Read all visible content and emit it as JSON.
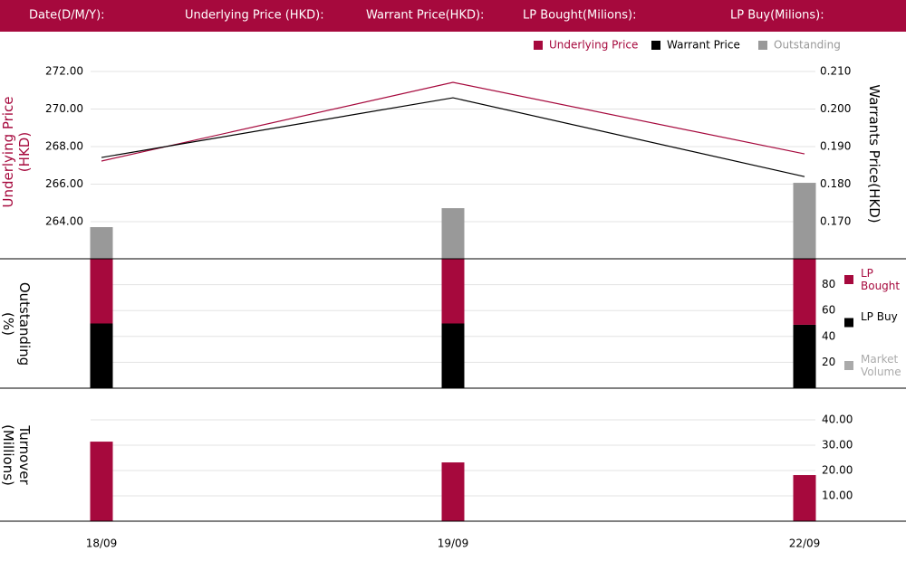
{
  "header": {
    "labels": [
      "Date(D/M/Y):",
      "Underlying Price (HKD):",
      "Warrant  Price(HKD):",
      "LP Bought(Milions):",
      "LP Buy(Milions):"
    ]
  },
  "chart_data": [
    {
      "type": "line",
      "ylabel": "Underlying Price (HKD)",
      "y2label": "Warrants  Price(HKD)",
      "ylim": [
        262,
        273
      ],
      "yticks": [
        {
          "value": 264,
          "label": "264.00"
        },
        {
          "value": 266,
          "label": "266.00"
        },
        {
          "value": 268,
          "label": "268.00"
        },
        {
          "value": 270,
          "label": "270.00"
        },
        {
          "value": 272,
          "label": "272.00"
        }
      ],
      "y2lim": [
        0.16,
        0.215
      ],
      "y2ticks": [
        {
          "value": 0.17,
          "label": "0.170"
        },
        {
          "value": 0.18,
          "label": "0.180"
        },
        {
          "value": 0.19,
          "label": "0.190"
        },
        {
          "value": 0.2,
          "label": "0.200"
        },
        {
          "value": 0.21,
          "label": "0.210"
        }
      ],
      "grid": true,
      "series": [
        {
          "name": "Underlying Price",
          "color": "#a6093d",
          "type": "line",
          "axis": "y",
          "values": [
            267.23,
            271.42,
            267.61
          ]
        },
        {
          "name": "Warrant  Price",
          "color": "#000000",
          "type": "line",
          "axis": "y2",
          "values": [
            0.1871,
            0.203,
            0.182
          ]
        },
        {
          "name": "Outstanding",
          "color": "#999999",
          "type": "bar",
          "axis": "y",
          "values": [
            263.71,
            264.72,
            266.07
          ]
        }
      ]
    },
    {
      "type": "stacked_bar",
      "ylabel": "Outstanding (%)",
      "ylim": [
        0,
        100
      ],
      "yticks": [
        20,
        40,
        60,
        80
      ],
      "grid": true,
      "series": [
        {
          "name": "LP Bought",
          "color": "#a6093d",
          "values": [
            50,
            50,
            51
          ]
        },
        {
          "name": "LP Buy",
          "color": "#000000",
          "values": [
            50,
            50,
            49
          ]
        },
        {
          "name": "Market Volume",
          "color": "#aaaaaa",
          "values": [
            null,
            null,
            null
          ]
        }
      ]
    },
    {
      "type": "bar",
      "ylabel": "Turnover (Millions)",
      "categories": [
        "18/09",
        "19/09",
        "22/09"
      ],
      "ylim": [
        0,
        52.5
      ],
      "yticks": [
        {
          "value": 10,
          "label": "10.00"
        },
        {
          "value": 20,
          "label": "20.00"
        },
        {
          "value": 30,
          "label": "30.00"
        },
        {
          "value": 40,
          "label": "40.00"
        }
      ],
      "grid": true,
      "color": "#a6093d",
      "values": [
        31.4,
        23.2,
        18.2
      ]
    }
  ]
}
